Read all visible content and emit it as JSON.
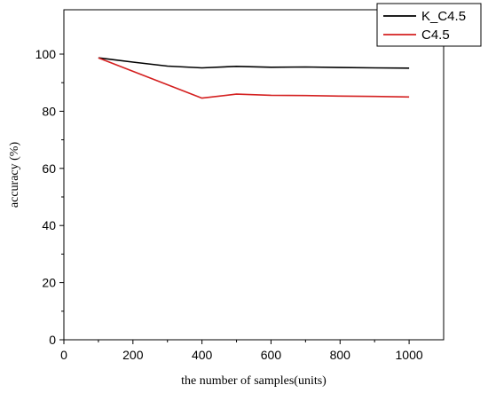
{
  "chart_data": {
    "type": "line",
    "xlabel": "the number of samples(units)",
    "ylabel": "accuracy (%)",
    "xlim": [
      0,
      1100
    ],
    "ylim": [
      0,
      100
    ],
    "xticks": [
      0,
      200,
      400,
      600,
      800,
      1000
    ],
    "yticks": [
      0,
      20,
      40,
      60,
      80,
      100
    ],
    "grid": false,
    "legend_position": "top-right",
    "series": [
      {
        "name": "K_C4.5",
        "color": "#000000",
        "x": [
          100,
          200,
          300,
          400,
          500,
          600,
          700,
          800,
          900,
          1000
        ],
        "y": [
          98.7,
          97.2,
          95.8,
          95.2,
          95.7,
          95.4,
          95.5,
          95.3,
          95.2,
          95.1
        ]
      },
      {
        "name": "C4.5",
        "color": "#d42020",
        "x": [
          100,
          400,
          500,
          600,
          700,
          800,
          900,
          1000
        ],
        "y": [
          98.7,
          84.6,
          86.0,
          85.6,
          85.5,
          85.3,
          85.2,
          85.0
        ]
      }
    ]
  }
}
